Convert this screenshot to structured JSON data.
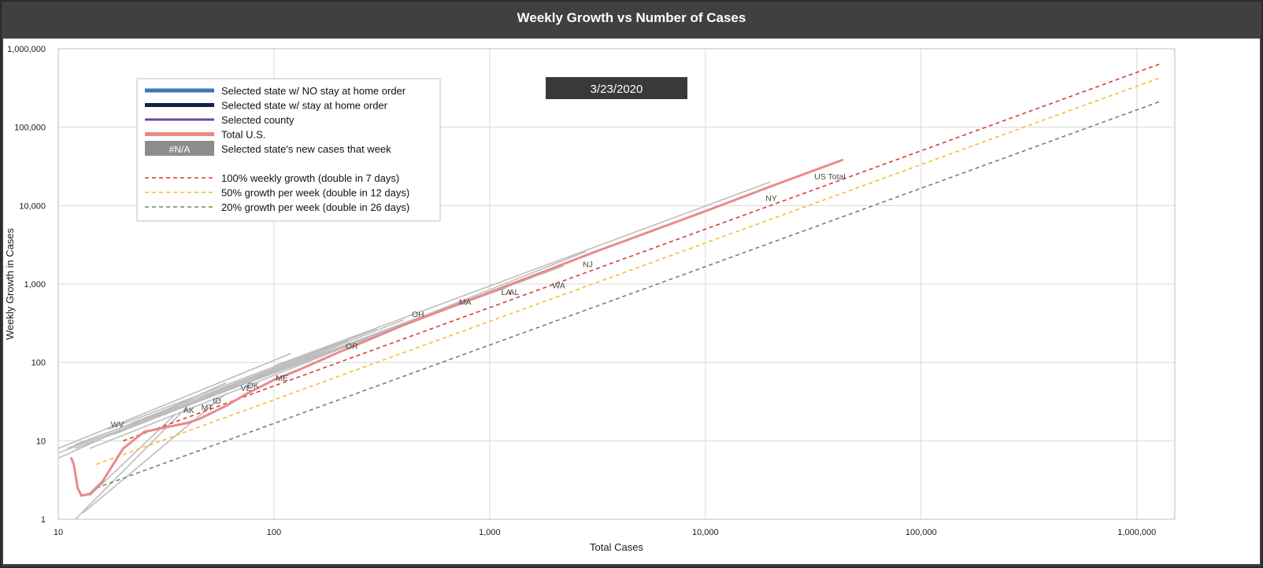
{
  "chart_data": {
    "type": "line",
    "title": "Weekly Growth vs Number of Cases",
    "xlabel": "Total Cases",
    "ylabel": "Weekly Growth in Cases",
    "x_scale": "log",
    "y_scale": "log",
    "xlim": [
      10,
      1500000
    ],
    "ylim": [
      1,
      1000000
    ],
    "x_ticks": [
      10,
      100,
      1000,
      10000,
      100000,
      1000000
    ],
    "x_tick_labels": [
      "10",
      "100",
      "1,000",
      "10,000",
      "100,000",
      "1,000,000"
    ],
    "y_ticks": [
      1,
      10,
      100,
      1000,
      10000,
      100000,
      1000000
    ],
    "y_tick_labels": [
      "1",
      "10",
      "100",
      "1,000",
      "10,000",
      "100,000",
      "1,000,000"
    ],
    "grid": true,
    "date_label": "3/23/2020",
    "legend_placement": "top-left",
    "legend": {
      "entries": [
        {
          "label": "Selected state w/ NO stay at home order",
          "color": "#3a78b5",
          "style": "solid"
        },
        {
          "label": "Selected state w/ stay at home order",
          "color": "#0f2346",
          "style": "solid"
        },
        {
          "label": "Selected county",
          "color": "#6a4aa0",
          "style": "solid"
        },
        {
          "label": "Total U.S.",
          "color": "#e88a8a",
          "style": "solid"
        },
        {
          "label": "Selected state's new cases that week",
          "color": "#8c8c8c",
          "style": "box",
          "box_text": "#N/A"
        },
        {
          "label": "100% weekly growth (double in 7 days)",
          "color": "#d93a3a",
          "style": "dashed"
        },
        {
          "label": "50% growth per week (double in 12 days)",
          "color": "#f0c030",
          "style": "dashed"
        },
        {
          "label": "20% growth per week (double in 26 days)",
          "color": "#7f7f62",
          "style": "dashed"
        }
      ]
    },
    "series": [
      {
        "name": "Total U.S.",
        "color": "#e88a8a",
        "x": [
          11.5,
          11.8,
          12.3,
          12.8,
          14,
          16,
          20,
          25,
          40,
          45,
          60,
          75,
          100,
          130,
          200,
          400,
          800,
          1500,
          3000,
          10000,
          20000,
          43000
        ],
        "y": [
          6,
          5,
          2.5,
          2,
          2.1,
          3,
          8,
          13,
          17,
          19,
          28,
          40,
          60,
          80,
          135,
          300,
          620,
          1200,
          2500,
          8500,
          17500,
          38000
        ]
      },
      {
        "name": "100% weekly growth (double in 7 days)",
        "color": "#d93a3a",
        "dashed": true,
        "x": [
          20,
          1300000
        ],
        "y": [
          10,
          650000
        ]
      },
      {
        "name": "50% growth per week (double in 12 days)",
        "color": "#f0c030",
        "dashed": true,
        "x": [
          15,
          1300000
        ],
        "y": [
          5,
          433000
        ]
      },
      {
        "name": "20% growth per week (double in 26 days)",
        "color": "#7f7f62",
        "dashed": true,
        "x": [
          15,
          1300000
        ],
        "y": [
          2.5,
          216000
        ]
      }
    ],
    "state_lines": [
      {
        "x": [
          10,
          120
        ],
        "y": [
          8,
          130
        ]
      },
      {
        "x": [
          11,
          300
        ],
        "y": [
          8,
          270
        ]
      },
      {
        "x": [
          12,
          800
        ],
        "y": [
          8,
          650
        ]
      },
      {
        "x": [
          14,
          2800
        ],
        "y": [
          8,
          2600
        ]
      },
      {
        "x": [
          10,
          2200
        ],
        "y": [
          7,
          1700
        ]
      },
      {
        "x": [
          12,
          1500
        ],
        "y": [
          9,
          1150
        ]
      },
      {
        "x": [
          18,
          400
        ],
        "y": [
          12,
          350
        ]
      },
      {
        "x": [
          25,
          220
        ],
        "y": [
          18,
          190
        ]
      },
      {
        "x": [
          30,
          500
        ],
        "y": [
          22,
          400
        ]
      },
      {
        "x": [
          10,
          60
        ],
        "y": [
          6,
          55
        ]
      },
      {
        "x": [
          40,
          1200
        ],
        "y": [
          32,
          900
        ]
      },
      {
        "x": [
          100,
          20000
        ],
        "y": [
          90,
          20000
        ]
      },
      {
        "x": [
          12,
          40
        ],
        "y": [
          1,
          28
        ]
      },
      {
        "x": [
          13,
          60
        ],
        "y": [
          1.2,
          40
        ]
      },
      {
        "x": [
          14,
          35
        ],
        "y": [
          2,
          22
        ]
      },
      {
        "x": [
          17,
          200
        ],
        "y": [
          14,
          180
        ]
      },
      {
        "x": [
          35,
          900
        ],
        "y": [
          25,
          700
        ]
      },
      {
        "x": [
          22,
          140
        ],
        "y": [
          17,
          120
        ]
      }
    ],
    "annotations": [
      {
        "label": "US Total",
        "x": 32000,
        "y": 21500
      },
      {
        "label": "NY",
        "x": 19000,
        "y": 11500
      },
      {
        "label": "NJ",
        "x": 2700,
        "y": 1650
      },
      {
        "label": "WA",
        "x": 1950,
        "y": 880
      },
      {
        "label": "LA",
        "x": 1130,
        "y": 720
      },
      {
        "label": "AL",
        "x": 1230,
        "y": 720
      },
      {
        "label": "MA",
        "x": 720,
        "y": 540
      },
      {
        "label": "OH",
        "x": 435,
        "y": 380
      },
      {
        "label": "OR",
        "x": 215,
        "y": 148
      },
      {
        "label": "ME",
        "x": 102,
        "y": 58
      },
      {
        "label": "OK",
        "x": 75,
        "y": 47
      },
      {
        "label": "VE",
        "x": 70,
        "y": 43
      },
      {
        "label": "ID",
        "x": 52,
        "y": 30
      },
      {
        "label": "MT",
        "x": 46,
        "y": 24.5
      },
      {
        "label": "AK",
        "x": 38,
        "y": 22.5
      },
      {
        "label": "WV",
        "x": 17.5,
        "y": 15
      }
    ]
  }
}
